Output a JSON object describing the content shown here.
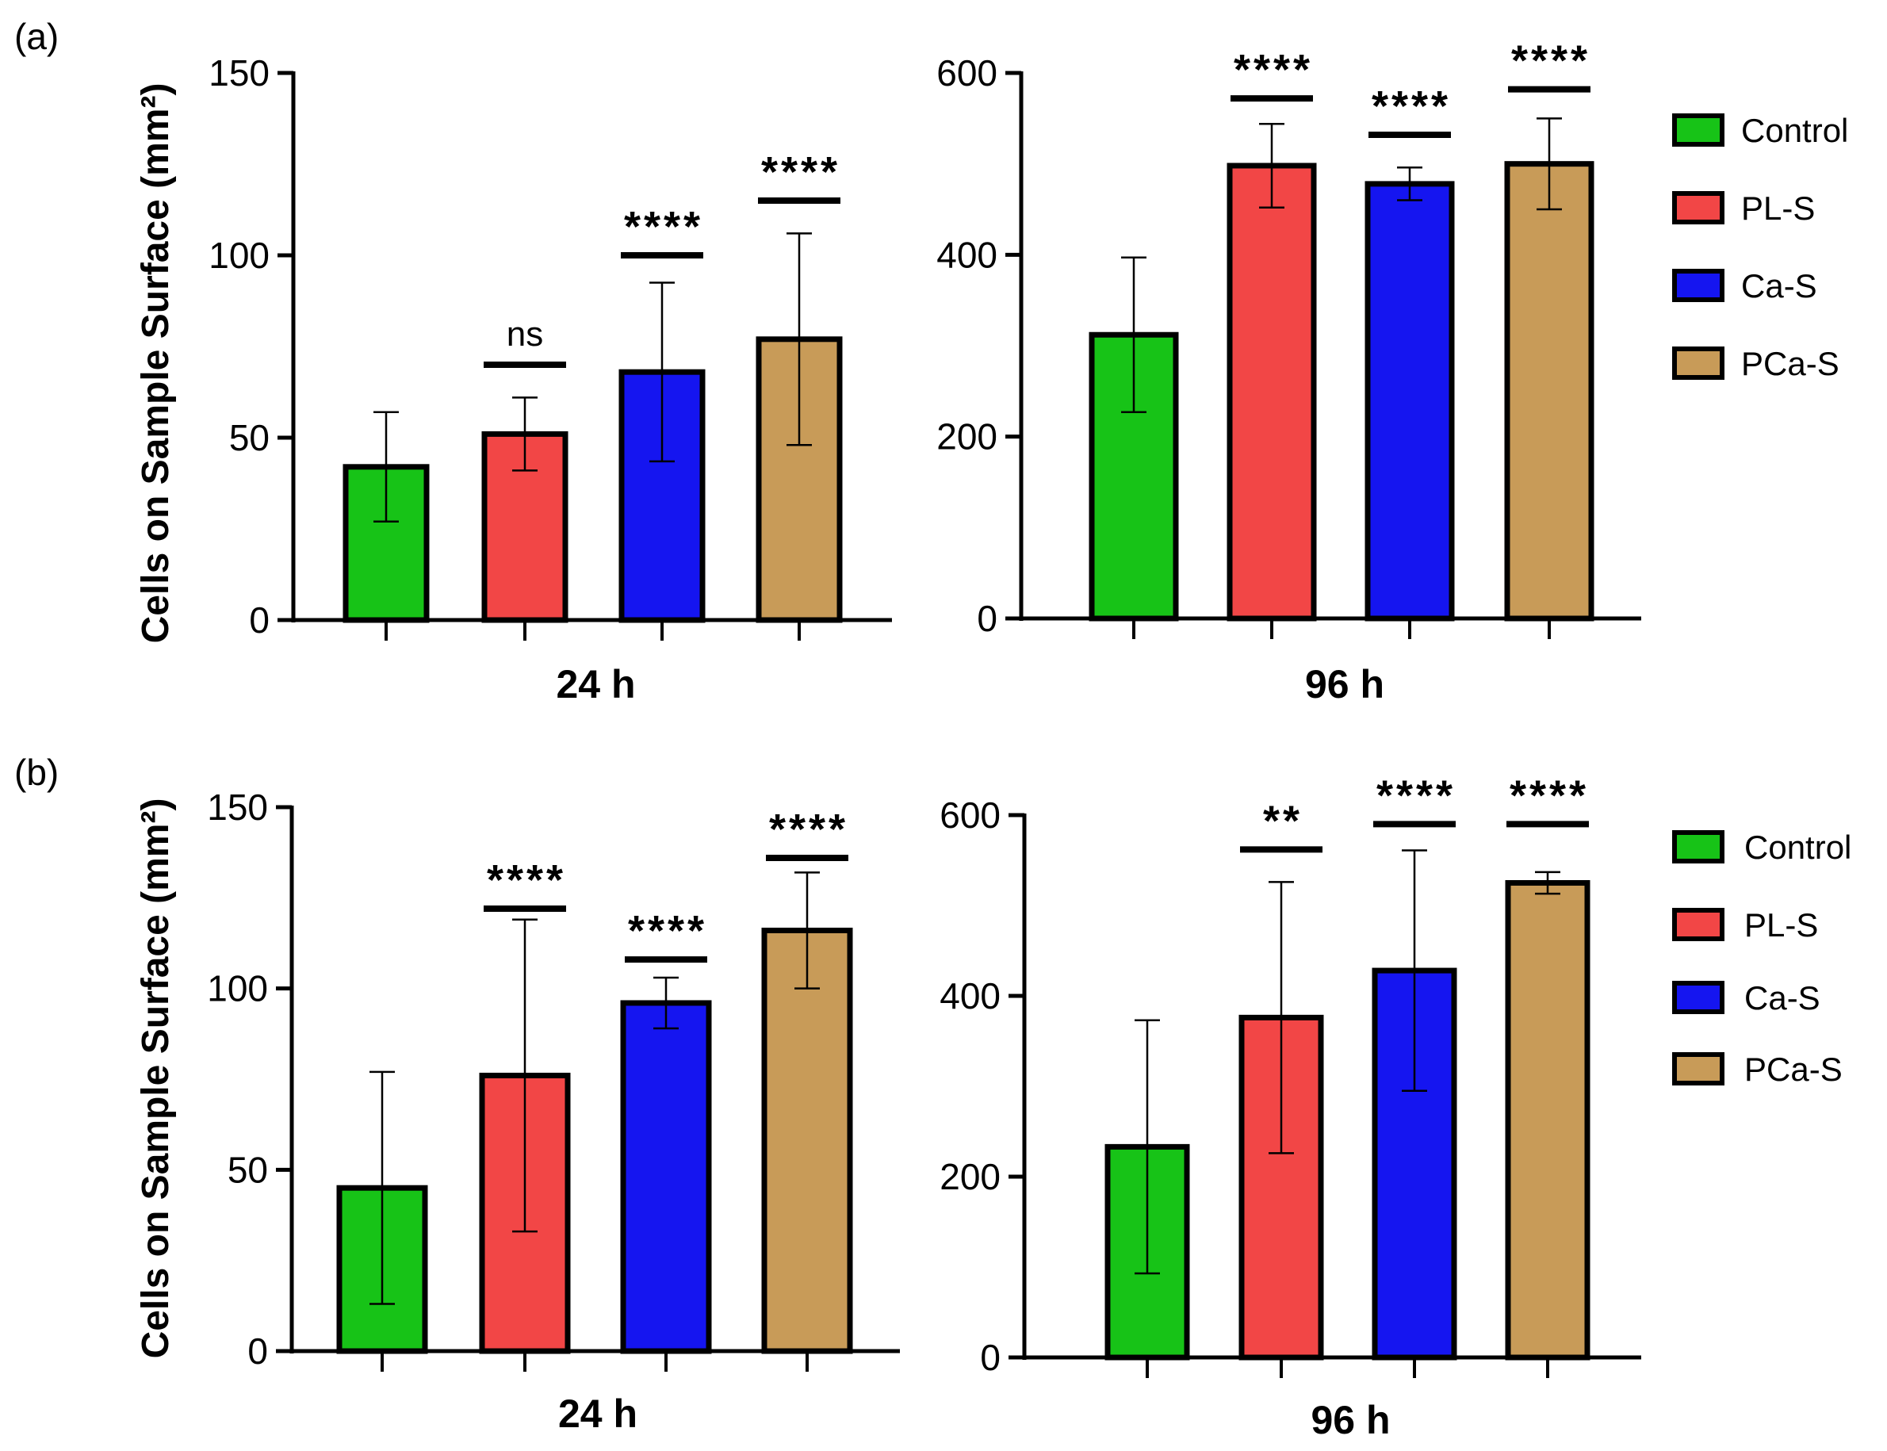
{
  "colors": {
    "Control": "#17c317",
    "PL-S": "#f24646",
    "Ca-S": "#1515f0",
    "PCa-S": "#c89b58"
  },
  "panel_labels": [
    "(a)",
    "(b)"
  ],
  "y_axis_label": "Cells on Sample Surface (mm²)",
  "legend": [
    "Control",
    "PL-S",
    "Ca-S",
    "PCa-S"
  ],
  "chart_data": [
    {
      "type": "bar",
      "panel": "(a)",
      "title": "",
      "xlabel": "24 h",
      "ylabel": "Cells on Sample Surface (mm²)",
      "ylim": [
        0,
        150
      ],
      "yticks": [
        0,
        50,
        100,
        150
      ],
      "ytick_labels": [
        "0",
        "50",
        "100",
        "150"
      ],
      "categories": [
        "Control",
        "PL-S",
        "Ca-S",
        "PCa-S"
      ],
      "values": [
        42,
        51,
        68,
        77
      ],
      "errors": [
        15,
        10,
        24.5,
        29
      ],
      "significance": [
        "",
        "ns",
        "****",
        "****"
      ],
      "sig_bar_level": [
        null,
        70,
        100,
        115
      ]
    },
    {
      "type": "bar",
      "panel": "(a)",
      "title": "",
      "xlabel": "96 h",
      "ylabel": "",
      "ylim": [
        0,
        600
      ],
      "yticks": [
        0,
        200,
        400,
        600
      ],
      "ytick_labels": [
        "0",
        "200",
        "400",
        "600"
      ],
      "categories": [
        "Control",
        "PL-S",
        "Ca-S",
        "PCa-S"
      ],
      "values": [
        312,
        498,
        478,
        500
      ],
      "errors": [
        85,
        46,
        18,
        50
      ],
      "significance": [
        "",
        "****",
        "****",
        "****"
      ],
      "sig_bar_level": [
        null,
        572,
        532,
        582
      ]
    },
    {
      "type": "bar",
      "panel": "(b)",
      "title": "",
      "xlabel": "24 h",
      "ylabel": "Cells on Sample Surface (mm²)",
      "ylim": [
        0,
        150
      ],
      "yticks": [
        0,
        50,
        100,
        150
      ],
      "ytick_labels": [
        "0",
        "50",
        "100",
        "150"
      ],
      "categories": [
        "Control",
        "PL-S",
        "Ca-S",
        "PCa-S"
      ],
      "values": [
        45,
        76,
        96,
        116
      ],
      "errors": [
        32,
        43,
        7,
        16
      ],
      "significance": [
        "",
        "****",
        "****",
        "****"
      ],
      "sig_bar_level": [
        null,
        122,
        108,
        136
      ]
    },
    {
      "type": "bar",
      "panel": "(b)",
      "title": "",
      "xlabel": "96 h",
      "ylabel": "",
      "ylim": [
        0,
        600
      ],
      "yticks": [
        0,
        200,
        400,
        600
      ],
      "ytick_labels": [
        "0",
        "200",
        "400",
        "600"
      ],
      "categories": [
        "Control",
        "PL-S",
        "Ca-S",
        "PCa-S"
      ],
      "values": [
        233,
        376,
        428,
        525
      ],
      "errors": [
        140,
        150,
        133,
        12
      ],
      "significance": [
        "",
        "**",
        "****",
        "****"
      ],
      "sig_bar_level": [
        null,
        562,
        590,
        590
      ]
    }
  ]
}
